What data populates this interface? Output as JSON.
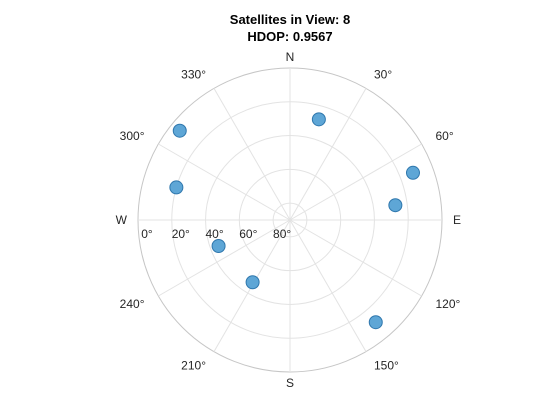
{
  "chart_data": {
    "type": "scatter",
    "subtype": "polar-skyplot",
    "title": "Satellites in View: 8",
    "subtitle": "HDOP: 0.9567",
    "angular_axis": {
      "direction": "clockwise",
      "zero_at": "north",
      "cardinal_labels": [
        {
          "text": "N",
          "azimuth": 0
        },
        {
          "text": "E",
          "azimuth": 90
        },
        {
          "text": "S",
          "azimuth": 180
        },
        {
          "text": "W",
          "azimuth": 270
        }
      ],
      "tick_labels": [
        {
          "text": "30°",
          "azimuth": 30
        },
        {
          "text": "60°",
          "azimuth": 60
        },
        {
          "text": "120°",
          "azimuth": 120
        },
        {
          "text": "150°",
          "azimuth": 150
        },
        {
          "text": "210°",
          "azimuth": 210
        },
        {
          "text": "240°",
          "azimuth": 240
        },
        {
          "text": "300°",
          "azimuth": 300
        },
        {
          "text": "330°",
          "azimuth": 330
        }
      ]
    },
    "radial_axis": {
      "quantity": "elevation",
      "range": [
        0,
        90
      ],
      "ticks": [
        0,
        20,
        40,
        60,
        80
      ],
      "tick_labels": [
        "0°",
        "20°",
        "40°",
        "60°",
        "80°"
      ]
    },
    "grid": true,
    "marker_color": "#5ea6d6",
    "marker_edge_color": "#2f77ad",
    "grid_color": "#e3e3e3",
    "outer_ring_color": "#c6c6c6",
    "points": [
      {
        "azimuth": 16,
        "elevation": 28
      },
      {
        "azimuth": 69,
        "elevation": 12
      },
      {
        "azimuth": 82,
        "elevation": 27
      },
      {
        "azimuth": 140,
        "elevation": 11
      },
      {
        "azimuth": 211,
        "elevation": 47
      },
      {
        "azimuth": 250,
        "elevation": 45
      },
      {
        "azimuth": 286,
        "elevation": 20
      },
      {
        "azimuth": 309,
        "elevation": 6
      }
    ]
  }
}
